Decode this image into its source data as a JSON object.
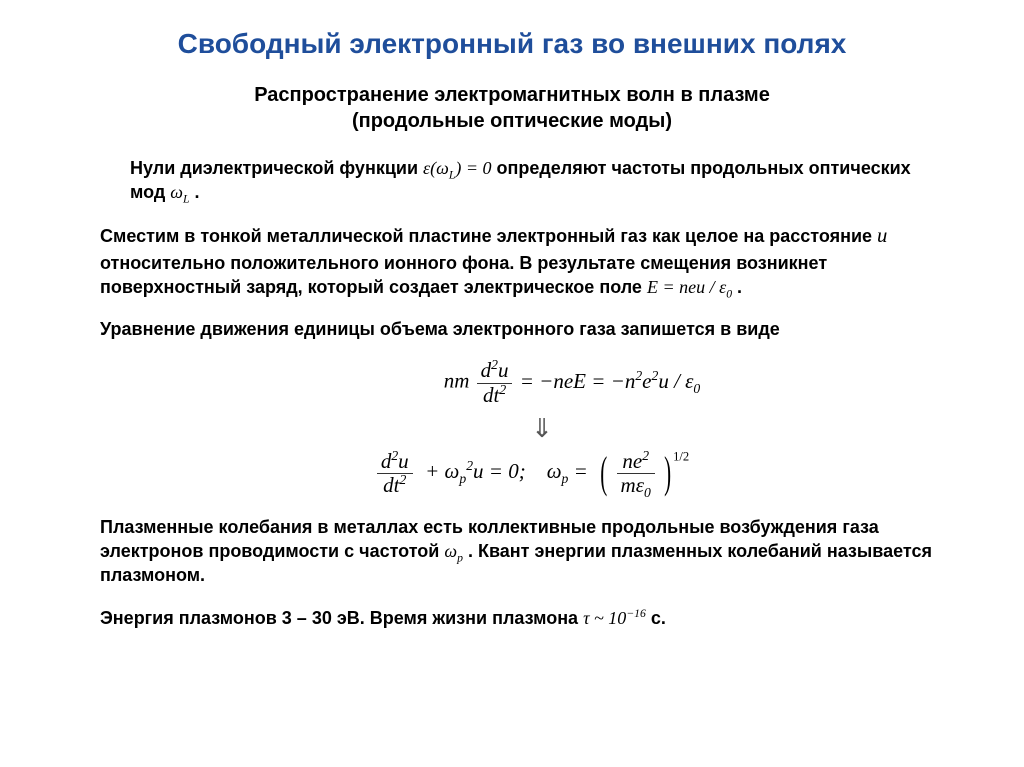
{
  "title": "Свободный электронный газ во внешних полях",
  "subtitle_l1": "Распространение электромагнитных волн в плазме",
  "subtitle_l2": "(продольные оптические моды)",
  "p1_a": "Нули диэлектрической функции ",
  "p1_eq": "ε(ω<sub>L</sub>) = 0",
  "p1_b": "  определяют частоты продольных оптических мод ",
  "p1_eq2": "ω<sub>L</sub>",
  "p1_c": " .",
  "p2_a": "Сместим в тонкой металлической пластине электронный газ как целое на расстояние ",
  "p2_u": "u",
  "p2_b": " относительно положительного ионного фона. В результате смещения возникнет поверхностный заряд, который создает электрическое поле   ",
  "p2_eq": "E = neu / ε<sub>0</sub>",
  "p2_c": " .",
  "p3": "Уравнение движения единицы объема электронного газа запишется в виде",
  "eq1_lhs_pre": "nm",
  "eq1_num": "d<sup>2</sup>u",
  "eq1_den": "dt<sup>2</sup>",
  "eq1_rhs": " = −neE = −n<sup>2</sup>e<sup>2</sup>u / ε<sub>0</sub>",
  "arrow": "⇓",
  "eq2_num": "d<sup>2</sup>u",
  "eq2_den": "dt<sup>2</sup>",
  "eq2_mid": " + ω<sub>p</sub><sup>2</sup>u = 0;    ω<sub>p</sub> = ",
  "eq2_f_num": "ne<sup>2</sup>",
  "eq2_f_den": "mε<sub>0</sub>",
  "eq2_pow": "1/2",
  "p4_a": "Плазменные колебания в металлах есть коллективные продольные возбуждения газа электронов проводимости с частотой ",
  "p4_wp": "ω<sub>p</sub>",
  "p4_b": ". Квант энергии плазменных колебаний называется плазмоном.",
  "p5_a": "Энергия плазмонов 3 – 30 эВ.  Время жизни плазмона   ",
  "p5_eq": "τ ~ 10<sup>−16</sup>",
  "p5_b": "   с.",
  "colors": {
    "title": "#1f4e9b",
    "text": "#000000",
    "bg": "#ffffff"
  },
  "fonts": {
    "title_size": 28,
    "subtitle_size": 20,
    "body_size": 18,
    "math_size": 21
  }
}
